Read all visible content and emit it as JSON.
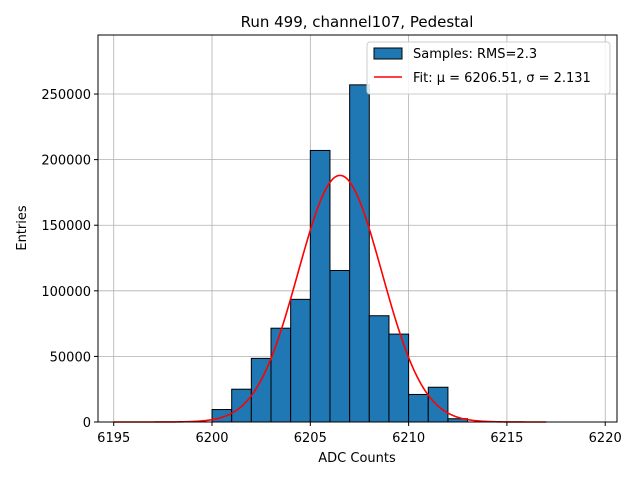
{
  "chart_data": {
    "type": "bar",
    "title": "Run 499, channel107, Pedestal",
    "xlabel": "ADC Counts",
    "ylabel": "Entries",
    "xlim": [
      6194.2,
      6220.6
    ],
    "ylim": [
      0,
      295000
    ],
    "xticks": [
      6195,
      6200,
      6205,
      6210,
      6215,
      6220
    ],
    "yticks": [
      0,
      50000,
      100000,
      150000,
      200000,
      250000
    ],
    "grid": true,
    "legend_position": "top-right",
    "histogram": {
      "name": "Samples: RMS=2.3",
      "color": "#1f77b4",
      "bin_edges": [
        6200,
        6201,
        6202,
        6203,
        6204,
        6205,
        6206,
        6207,
        6208,
        6209,
        6210,
        6211,
        6212,
        6213
      ],
      "values": [
        9500,
        25000,
        48500,
        71500,
        93500,
        207000,
        115500,
        257000,
        81000,
        67000,
        21000,
        26500,
        2500
      ]
    },
    "fit": {
      "name": "Fit: μ = 6206.51, σ = 2.131",
      "color": "#ff0000",
      "mu": 6206.51,
      "sigma": 2.131,
      "amplitude": 188000,
      "x_range": [
        6195,
        6217
      ]
    }
  }
}
